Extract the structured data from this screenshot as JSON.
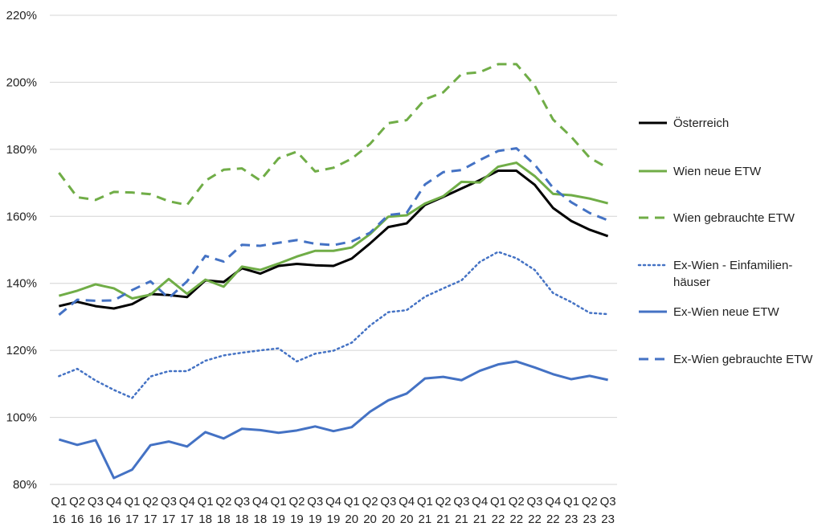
{
  "chart_data": {
    "type": "line",
    "title": "",
    "xlabel": "",
    "ylabel": "",
    "ylim": [
      80,
      220
    ],
    "yticks": [
      80,
      100,
      120,
      140,
      160,
      180,
      200,
      220
    ],
    "ytick_labels": [
      "80%",
      "100%",
      "120%",
      "140%",
      "160%",
      "180%",
      "200%",
      "220%"
    ],
    "y_unit": "%",
    "grid": "horizontal",
    "legend_position": "right",
    "categories": [
      [
        "Q1",
        "16"
      ],
      [
        "Q2",
        "16"
      ],
      [
        "Q3",
        "16"
      ],
      [
        "Q4",
        "16"
      ],
      [
        "Q1",
        "17"
      ],
      [
        "Q2",
        "17"
      ],
      [
        "Q3",
        "17"
      ],
      [
        "Q4",
        "17"
      ],
      [
        "Q1",
        "18"
      ],
      [
        "Q2",
        "18"
      ],
      [
        "Q3",
        "18"
      ],
      [
        "Q4",
        "18"
      ],
      [
        "Q1",
        "19"
      ],
      [
        "Q2",
        "19"
      ],
      [
        "Q3",
        "19"
      ],
      [
        "Q4",
        "19"
      ],
      [
        "Q1",
        "20"
      ],
      [
        "Q2",
        "20"
      ],
      [
        "Q3",
        "20"
      ],
      [
        "Q4",
        "20"
      ],
      [
        "Q1",
        "21"
      ],
      [
        "Q2",
        "21"
      ],
      [
        "Q3",
        "21"
      ],
      [
        "Q4",
        "21"
      ],
      [
        "Q1",
        "22"
      ],
      [
        "Q2",
        "22"
      ],
      [
        "Q3",
        "22"
      ],
      [
        "Q4",
        "22"
      ],
      [
        "Q1",
        "23"
      ],
      [
        "Q2",
        "23"
      ],
      [
        "Q3",
        "23"
      ]
    ],
    "series": [
      {
        "name": "Österreich",
        "color": "#000000",
        "dash": "solid",
        "width": 3,
        "values": [
          133.2,
          134.5,
          133.2,
          132.5,
          133.8,
          136.8,
          136.5,
          135.9,
          140.9,
          140.4,
          144.5,
          142.9,
          145.2,
          145.8,
          145.4,
          145.2,
          147.4,
          151.9,
          156.8,
          157.9,
          163.4,
          165.8,
          168.3,
          170.8,
          173.6,
          173.6,
          169.4,
          162.5,
          158.6,
          156.0,
          154.1
        ]
      },
      {
        "name": "Wien neue ETW",
        "color": "#70ad47",
        "dash": "solid",
        "width": 3,
        "values": [
          136.3,
          137.8,
          139.7,
          138.5,
          135.5,
          136.6,
          141.3,
          136.9,
          141.1,
          139.0,
          145.0,
          144.0,
          145.9,
          148.0,
          149.7,
          149.7,
          150.7,
          154.7,
          159.9,
          160.3,
          163.8,
          166.0,
          170.3,
          170.1,
          174.8,
          176.0,
          172.0,
          166.7,
          166.3,
          165.3,
          163.9
        ]
      },
      {
        "name": "Wien gebrauchte ETW",
        "color": "#70ad47",
        "dash": "dashed",
        "width": 3,
        "values": [
          173.0,
          165.7,
          164.9,
          167.3,
          167.1,
          166.6,
          164.5,
          163.4,
          170.6,
          173.9,
          174.3,
          170.7,
          177.3,
          179.3,
          173.4,
          174.5,
          177.2,
          181.6,
          187.8,
          188.7,
          194.9,
          197.0,
          202.5,
          203.0,
          205.4,
          205.4,
          199.0,
          188.9,
          183.7,
          177.5,
          174.4
        ]
      },
      {
        "name": "Ex-Wien - Einfamilien-\nhäuser",
        "color": "#4472c4",
        "dash": "dotted",
        "width": 2.5,
        "values": [
          112.3,
          114.5,
          111.0,
          108.2,
          105.8,
          112.2,
          113.8,
          113.8,
          116.9,
          118.5,
          119.3,
          120.0,
          120.6,
          116.7,
          119.0,
          119.9,
          122.3,
          127.4,
          131.4,
          132.0,
          136.0,
          138.5,
          140.9,
          146.4,
          149.4,
          147.5,
          144.0,
          137.1,
          134.4,
          131.2,
          130.8
        ]
      },
      {
        "name": "Ex-Wien neue ETW",
        "color": "#4472c4",
        "dash": "solid",
        "width": 3,
        "values": [
          93.4,
          91.8,
          93.2,
          81.9,
          84.4,
          91.7,
          92.8,
          91.3,
          95.6,
          93.7,
          96.6,
          96.2,
          95.4,
          96.1,
          97.3,
          95.9,
          97.1,
          101.7,
          105.1,
          107.1,
          111.6,
          112.1,
          111.1,
          113.9,
          115.8,
          116.7,
          114.9,
          112.9,
          111.4,
          112.4,
          111.2
        ]
      },
      {
        "name": "Ex-Wien gebrauchte ETW",
        "color": "#4472c4",
        "dash": "dashed",
        "width": 3,
        "values": [
          130.6,
          135.1,
          134.8,
          134.9,
          138.0,
          140.6,
          135.6,
          140.6,
          148.2,
          146.5,
          151.5,
          151.2,
          152.1,
          152.9,
          151.8,
          151.4,
          152.5,
          155.1,
          160.4,
          161.0,
          169.5,
          173.2,
          173.8,
          176.8,
          179.5,
          180.3,
          175.4,
          168.5,
          164.2,
          161.0,
          158.8
        ]
      }
    ]
  }
}
